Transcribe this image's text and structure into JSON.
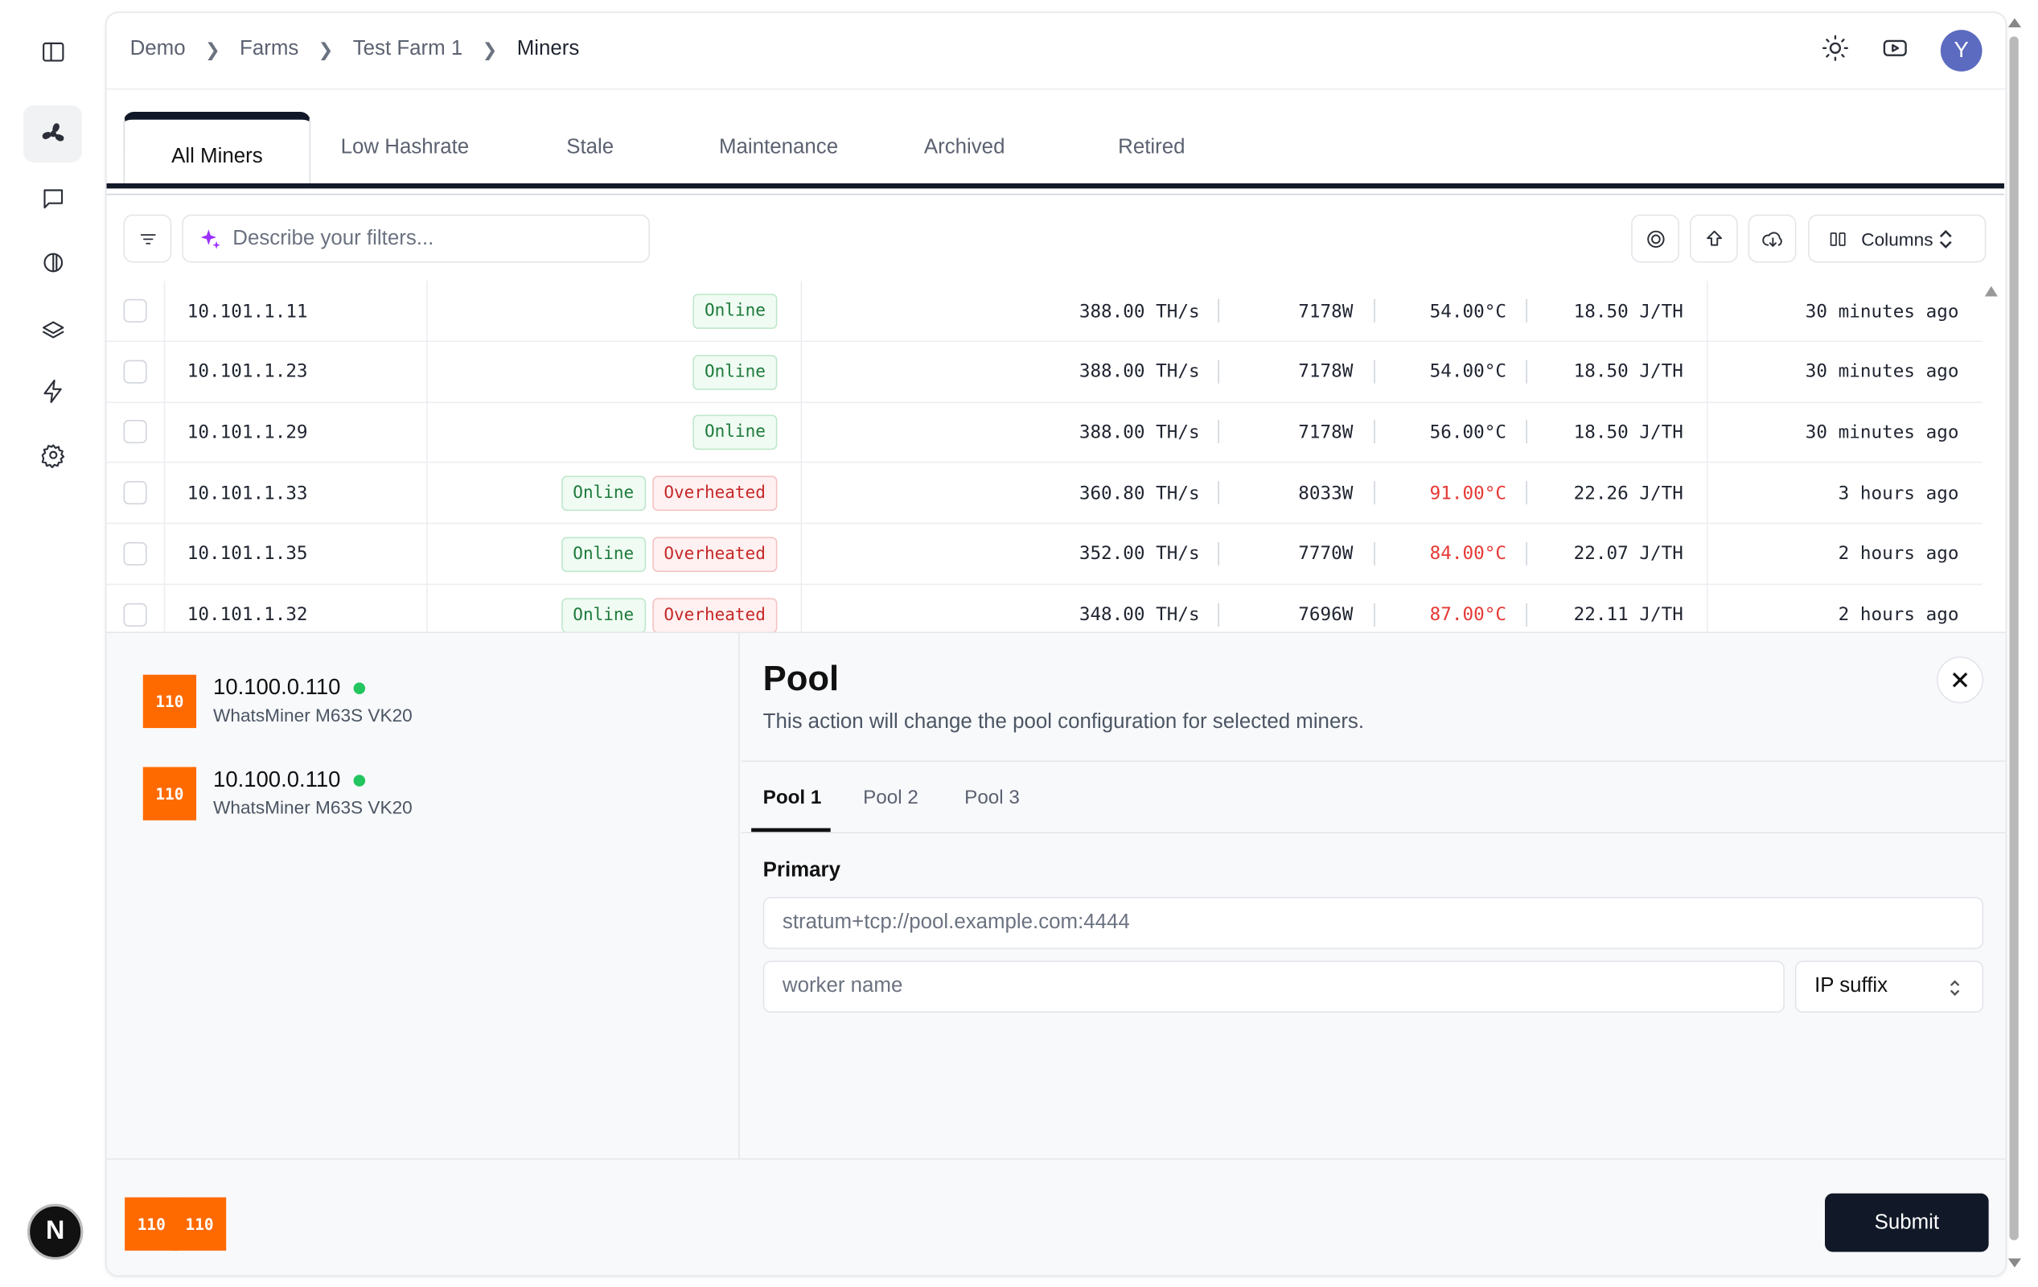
{
  "breadcrumb": [
    "Demo",
    "Farms",
    "Test Farm 1",
    "Miners"
  ],
  "user_avatar": "Y",
  "nav_avatar": "N",
  "tabs": [
    "All Miners",
    "Low Hashrate",
    "Stale",
    "Maintenance",
    "Archived",
    "Retired"
  ],
  "filter": {
    "placeholder": "Describe your filters..."
  },
  "columns_label": "Columns",
  "miners": [
    {
      "ip": "10.101.1.11",
      "statuses": [
        "Online"
      ],
      "hashrate": "388.00 TH/s",
      "power": "7178W",
      "temp": "54.00°C",
      "temp_hot": false,
      "efficiency": "18.50 J/TH",
      "last_seen": "30 minutes ago"
    },
    {
      "ip": "10.101.1.23",
      "statuses": [
        "Online"
      ],
      "hashrate": "388.00 TH/s",
      "power": "7178W",
      "temp": "54.00°C",
      "temp_hot": false,
      "efficiency": "18.50 J/TH",
      "last_seen": "30 minutes ago"
    },
    {
      "ip": "10.101.1.29",
      "statuses": [
        "Online"
      ],
      "hashrate": "388.00 TH/s",
      "power": "7178W",
      "temp": "56.00°C",
      "temp_hot": false,
      "efficiency": "18.50 J/TH",
      "last_seen": "30 minutes ago"
    },
    {
      "ip": "10.101.1.33",
      "statuses": [
        "Online",
        "Overheated"
      ],
      "hashrate": "360.80 TH/s",
      "power": "8033W",
      "temp": "91.00°C",
      "temp_hot": true,
      "efficiency": "22.26 J/TH",
      "last_seen": "3 hours ago"
    },
    {
      "ip": "10.101.1.35",
      "statuses": [
        "Online",
        "Overheated"
      ],
      "hashrate": "352.00 TH/s",
      "power": "7770W",
      "temp": "84.00°C",
      "temp_hot": true,
      "efficiency": "22.07 J/TH",
      "last_seen": "2 hours ago"
    },
    {
      "ip": "10.101.1.32",
      "statuses": [
        "Online",
        "Overheated"
      ],
      "hashrate": "348.00 TH/s",
      "power": "7696W",
      "temp": "87.00°C",
      "temp_hot": true,
      "efficiency": "22.11 J/TH",
      "last_seen": "2 hours ago"
    }
  ],
  "selected_miners": [
    {
      "tag": "110",
      "ip": "10.100.0.110",
      "model": "WhatsMiner M63S VK20"
    },
    {
      "tag": "110",
      "ip": "10.100.0.110",
      "model": "WhatsMiner M63S VK20"
    }
  ],
  "pool_form": {
    "title": "Pool",
    "subtitle": "This action will change the pool configuration for selected miners.",
    "tabs": [
      "Pool 1",
      "Pool 2",
      "Pool 3"
    ],
    "primary_label": "Primary",
    "url_placeholder": "stratum+tcp://pool.example.com:4444",
    "worker_placeholder": "worker name",
    "suffix_select": "IP suffix",
    "submit": "Submit"
  },
  "footer_tags": [
    "110",
    "110"
  ]
}
